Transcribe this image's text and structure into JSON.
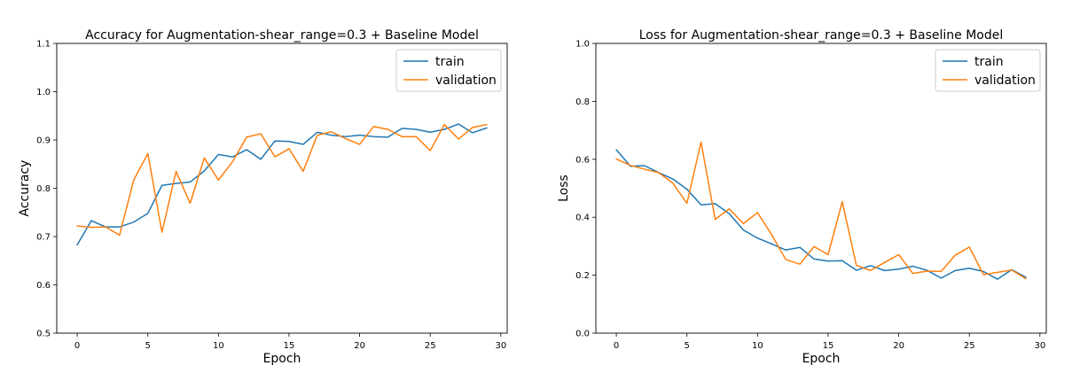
{
  "chart_data": [
    {
      "type": "line",
      "title": "Accuracy for Augmentation-shear_range=0.3 + Baseline Model",
      "xlabel": "Epoch",
      "ylabel": "Accuracy",
      "xlim": [
        -1.45,
        30.45
      ],
      "ylim": [
        0.5,
        1.1
      ],
      "xticks": [
        0,
        5,
        10,
        15,
        20,
        25,
        30
      ],
      "yticks": [
        0.5,
        0.6,
        0.7,
        0.8,
        0.9,
        1.0,
        1.1
      ],
      "ytick_labels": [
        "0.5",
        "0.6",
        "0.7",
        "0.8",
        "0.9",
        "1.0",
        "1.1"
      ],
      "legend": "top-right",
      "x": [
        0,
        1,
        2,
        3,
        4,
        5,
        6,
        7,
        8,
        9,
        10,
        11,
        12,
        13,
        14,
        15,
        16,
        17,
        18,
        19,
        20,
        21,
        22,
        23,
        24,
        25,
        26,
        27,
        28,
        29
      ],
      "series": [
        {
          "name": "train",
          "color": "#1f77b4",
          "values": [
            0.683,
            0.733,
            0.72,
            0.72,
            0.73,
            0.748,
            0.806,
            0.81,
            0.813,
            0.836,
            0.87,
            0.865,
            0.88,
            0.86,
            0.898,
            0.897,
            0.891,
            0.916,
            0.91,
            0.907,
            0.91,
            0.907,
            0.906,
            0.924,
            0.922,
            0.916,
            0.922,
            0.933,
            0.915,
            0.925
          ]
        },
        {
          "name": "validation",
          "color": "#ff7f0e",
          "values": [
            0.722,
            0.719,
            0.72,
            0.703,
            0.817,
            0.872,
            0.709,
            0.835,
            0.769,
            0.863,
            0.817,
            0.855,
            0.906,
            0.913,
            0.865,
            0.882,
            0.835,
            0.91,
            0.917,
            0.903,
            0.891,
            0.928,
            0.922,
            0.907,
            0.907,
            0.878,
            0.932,
            0.902,
            0.926,
            0.932
          ]
        }
      ]
    },
    {
      "type": "line",
      "title": "Loss for Augmentation-shear_range=0.3 + Baseline Model",
      "xlabel": "Epoch",
      "ylabel": "Loss",
      "xlim": [
        -1.45,
        30.45
      ],
      "ylim": [
        0.0,
        1.0
      ],
      "xticks": [
        0,
        5,
        10,
        15,
        20,
        25,
        30
      ],
      "yticks": [
        0.0,
        0.2,
        0.4,
        0.6,
        0.8,
        1.0
      ],
      "ytick_labels": [
        "0.0",
        "0.2",
        "0.4",
        "0.6",
        "0.8",
        "1.0"
      ],
      "legend": "top-right",
      "x": [
        0,
        1,
        2,
        3,
        4,
        5,
        6,
        7,
        8,
        9,
        10,
        11,
        12,
        13,
        14,
        15,
        16,
        17,
        18,
        19,
        20,
        21,
        22,
        23,
        24,
        25,
        26,
        27,
        28,
        29
      ],
      "series": [
        {
          "name": "train",
          "color": "#1f77b4",
          "values": [
            0.633,
            0.576,
            0.578,
            0.554,
            0.532,
            0.497,
            0.443,
            0.447,
            0.412,
            0.356,
            0.328,
            0.308,
            0.287,
            0.296,
            0.256,
            0.249,
            0.25,
            0.217,
            0.233,
            0.216,
            0.221,
            0.231,
            0.217,
            0.19,
            0.216,
            0.224,
            0.213,
            0.186,
            0.219,
            0.193
          ]
        },
        {
          "name": "validation",
          "color": "#ff7f0e",
          "values": [
            0.601,
            0.579,
            0.566,
            0.554,
            0.518,
            0.448,
            0.659,
            0.393,
            0.429,
            0.378,
            0.416,
            0.34,
            0.254,
            0.238,
            0.299,
            0.271,
            0.454,
            0.234,
            0.216,
            0.244,
            0.271,
            0.206,
            0.214,
            0.213,
            0.269,
            0.297,
            0.202,
            0.21,
            0.218,
            0.188
          ]
        }
      ]
    }
  ]
}
